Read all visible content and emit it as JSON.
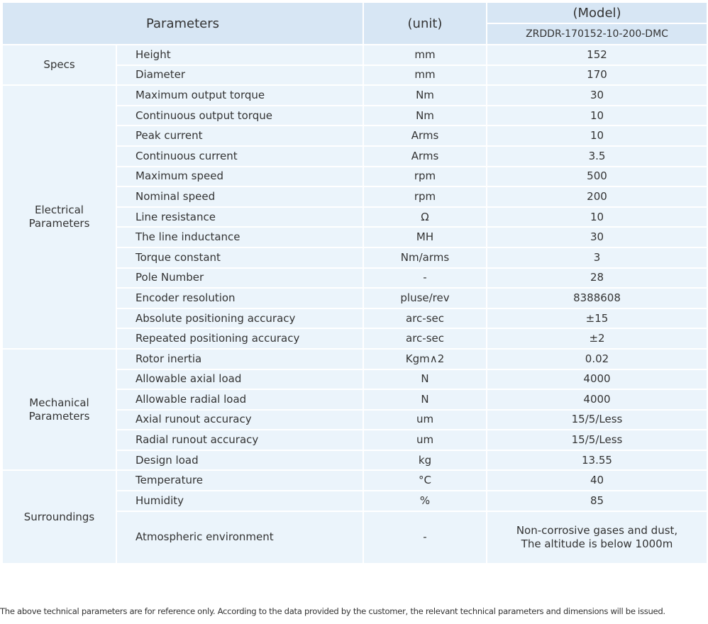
{
  "header": {
    "parameters": "Parameters",
    "unit": "(unit)",
    "model": "(Model)",
    "model_name": "ZRDDR-170152-10-200-DMC"
  },
  "groups": [
    {
      "name": "Specs",
      "rows": [
        [
          "Height",
          "mm",
          "152"
        ],
        [
          "Diameter",
          "mm",
          "170"
        ]
      ]
    },
    {
      "name": "Electrical\nParameters",
      "rows": [
        [
          "Maximum output torque",
          "Nm",
          "30"
        ],
        [
          "Continuous output torque",
          "Nm",
          "10"
        ],
        [
          "Peak current",
          "Arms",
          "10"
        ],
        [
          "Continuous current",
          "Arms",
          "3.5"
        ],
        [
          "Maximum speed",
          "rpm",
          "500"
        ],
        [
          "Nominal speed",
          "rpm",
          "200"
        ],
        [
          "Line resistance",
          "Ω",
          "10"
        ],
        [
          "The line inductance",
          "MH",
          "30"
        ],
        [
          "Torque constant",
          "Nm/arms",
          "3"
        ],
        [
          "Pole Number",
          "-",
          "28"
        ],
        [
          "Encoder resolution",
          "pluse/rev",
          "8388608"
        ],
        [
          "Absolute positioning accuracy",
          "arc-sec",
          "±15"
        ],
        [
          "Repeated positioning accuracy",
          "arc-sec",
          "±2"
        ]
      ]
    },
    {
      "name": "Mechanical\nParameters",
      "rows": [
        [
          "Rotor inertia",
          "Kgm∧2",
          "0.02"
        ],
        [
          "Allowable axial load",
          "N",
          "4000"
        ],
        [
          "Allowable radial load",
          "N",
          "4000"
        ],
        [
          "Axial runout accuracy",
          "um",
          "15/5/Less"
        ],
        [
          "Radial runout accuracy",
          "um",
          "15/5/Less"
        ],
        [
          "Design load",
          "kg",
          "13.55"
        ]
      ]
    },
    {
      "name": "Surroundings",
      "rows": [
        [
          "Temperature",
          "°C",
          "40"
        ],
        [
          "Humidity",
          "%",
          "85"
        ],
        [
          "Atmospheric environment",
          "-",
          "Non-corrosive gases and dust,\nThe altitude is below 1000m"
        ]
      ]
    }
  ],
  "footnote": "The above technical parameters are for reference only. According to the data provided by the customer, the relevant technical parameters and dimensions will be issued."
}
